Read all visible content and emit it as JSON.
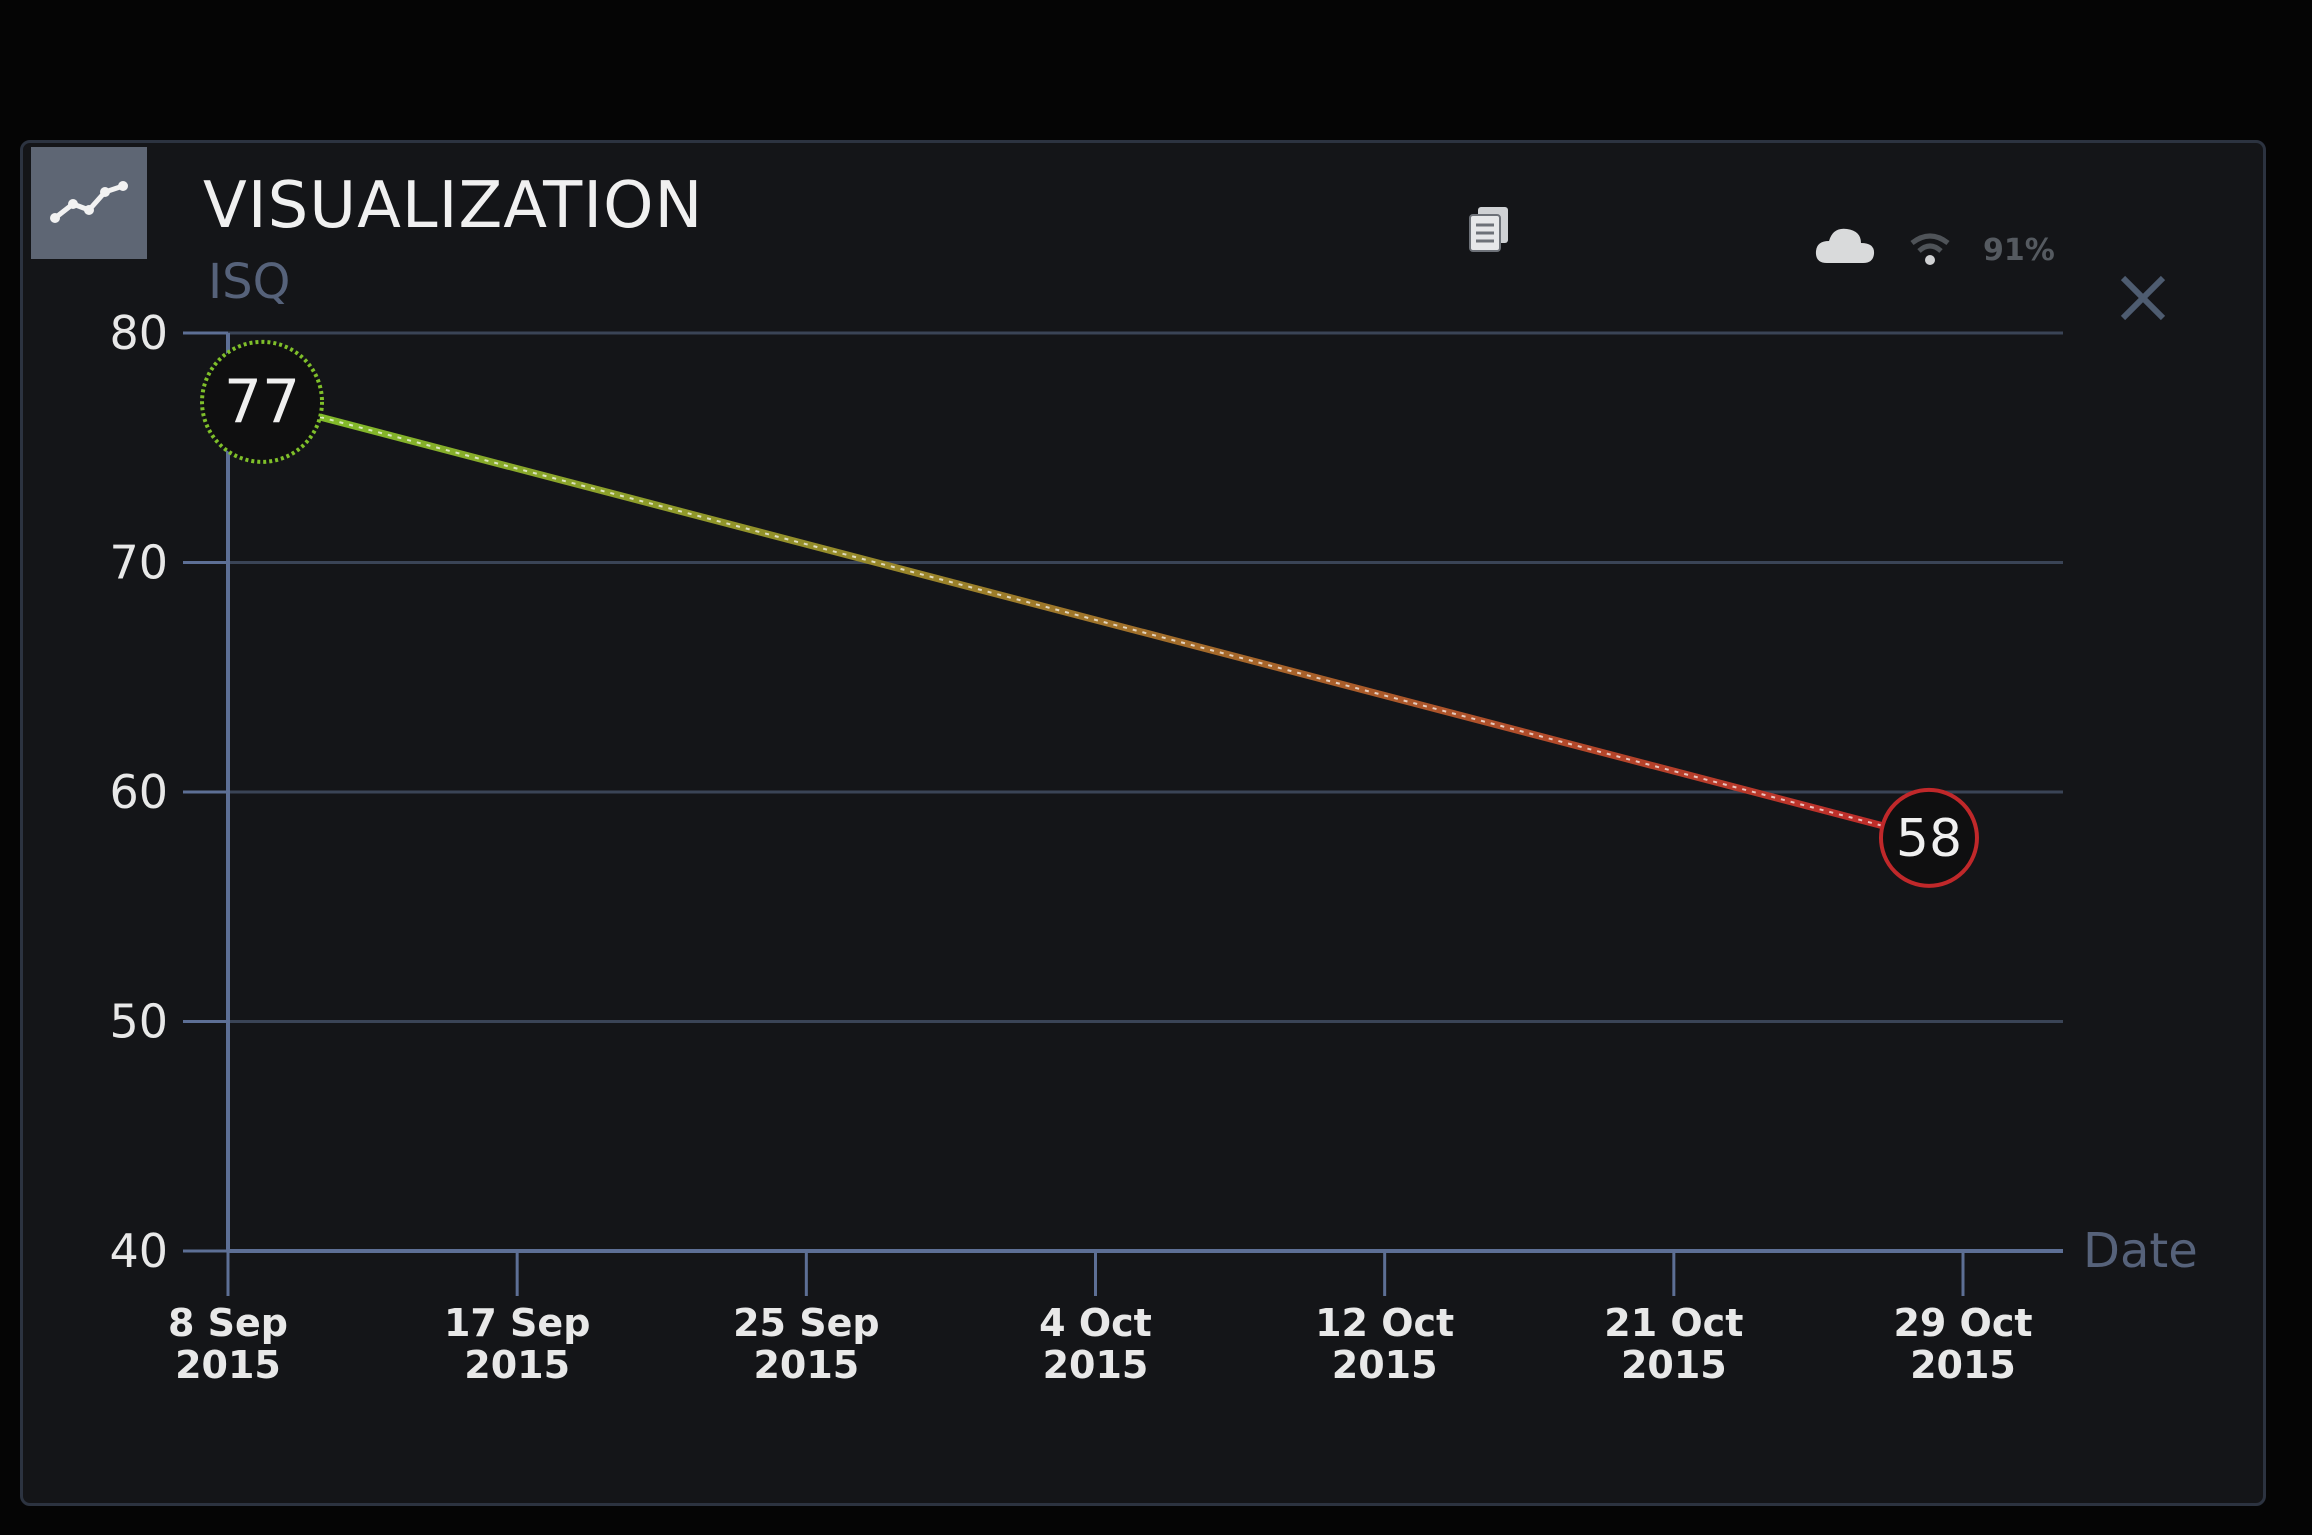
{
  "header": {
    "title": "VISUALIZATION",
    "icon": "line-chart-icon"
  },
  "status": {
    "battery": "91%",
    "icons": [
      "document-stack-icon",
      "cloud-icon",
      "wifi-icon",
      "close-icon"
    ]
  },
  "colors": {
    "background": "#141518",
    "grid": "#3a4456",
    "axis": "#5d6f95",
    "start_point": "#7fbf2a",
    "end_point": "#c0282a",
    "text": "#f0f0f0"
  },
  "chart_data": {
    "type": "line",
    "ylabel": "ISQ",
    "xlabel": "Date",
    "ylim": [
      40,
      80
    ],
    "yticks": [
      "40",
      "50",
      "60",
      "70",
      "80"
    ],
    "xticks": [
      [
        "8 Sep",
        "2015"
      ],
      [
        "17 Sep",
        "2015"
      ],
      [
        "25 Sep",
        "2015"
      ],
      [
        "4 Oct",
        "2015"
      ],
      [
        "12 Oct",
        "2015"
      ],
      [
        "21 Oct",
        "2015"
      ],
      [
        "29 Oct",
        "2015"
      ]
    ],
    "series": [
      {
        "x": [
          "2015-09-09",
          "2015-10-28"
        ],
        "y": [
          77,
          58
        ],
        "labels": [
          "77",
          "58"
        ]
      }
    ],
    "grid": true
  }
}
